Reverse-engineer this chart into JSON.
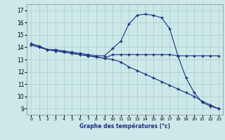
{
  "title": "",
  "xlabel": "Graphe des températures (°c)",
  "bg_color": "#cce8e8",
  "grid_color": "#aacccc",
  "line_color": "#1a3080",
  "xlim": [
    -0.5,
    23.5
  ],
  "ylim": [
    8.5,
    17.5
  ],
  "xticks": [
    0,
    1,
    2,
    3,
    4,
    5,
    6,
    7,
    8,
    9,
    10,
    11,
    12,
    13,
    14,
    15,
    16,
    17,
    18,
    19,
    20,
    21,
    22,
    23
  ],
  "yticks": [
    9,
    10,
    11,
    12,
    13,
    14,
    15,
    16,
    17
  ],
  "line1_x": [
    0,
    1,
    2,
    3,
    4,
    5,
    6,
    7,
    8,
    9,
    10,
    11,
    12,
    13,
    14,
    15,
    16,
    17,
    18,
    19,
    20,
    21,
    22,
    23
  ],
  "line1_y": [
    14.3,
    14.1,
    13.8,
    13.8,
    13.7,
    13.6,
    13.5,
    13.4,
    13.3,
    13.3,
    13.9,
    14.5,
    15.9,
    16.6,
    16.7,
    16.6,
    16.4,
    15.5,
    13.3,
    13.3,
    13.3,
    13.3,
    13.3,
    13.3
  ],
  "line2_x": [
    0,
    1,
    2,
    3,
    4,
    5,
    6,
    7,
    8,
    9,
    10,
    11,
    12,
    13,
    14,
    15,
    16,
    17,
    18,
    19,
    20,
    21,
    22,
    23
  ],
  "line2_y": [
    14.2,
    14.0,
    13.8,
    13.7,
    13.6,
    13.5,
    13.4,
    13.3,
    13.2,
    13.1,
    13.4,
    13.4,
    13.4,
    13.4,
    13.4,
    13.4,
    13.4,
    13.4,
    13.3,
    11.5,
    10.3,
    9.5,
    9.2,
    9.0
  ],
  "line3_x": [
    0,
    1,
    2,
    3,
    4,
    5,
    6,
    7,
    8,
    9,
    10,
    11,
    12,
    13,
    14,
    15,
    16,
    17,
    18,
    19,
    20,
    21,
    22,
    23
  ],
  "line3_y": [
    14.2,
    14.0,
    13.8,
    13.7,
    13.6,
    13.5,
    13.4,
    13.3,
    13.2,
    13.1,
    13.0,
    12.8,
    12.4,
    12.1,
    11.8,
    11.5,
    11.2,
    10.9,
    10.6,
    10.3,
    10.0,
    9.6,
    9.3,
    9.0
  ]
}
